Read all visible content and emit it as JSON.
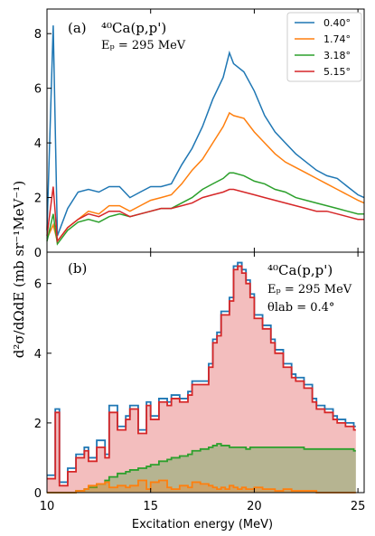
{
  "figure": {
    "panel_a": {
      "label": "(a)",
      "reaction": "⁴⁰Ca(p,p')",
      "energy": "Eₚ = 295 MeV",
      "legend": [
        "0.40°",
        "1.74°",
        "3.18°",
        "5.15°"
      ],
      "yticks": [
        "0",
        "2",
        "4",
        "6",
        "8"
      ]
    },
    "panel_b": {
      "label": "(b)",
      "reaction": "⁴⁰Ca(p,p')",
      "energy": "Eₚ = 295 MeV",
      "angle": "θlab = 0.4°",
      "yticks": [
        "0",
        "2",
        "4",
        "6"
      ]
    },
    "xticks": [
      "10",
      "15",
      "20",
      "25"
    ],
    "xlabel": "Excitation energy (MeV)",
    "ylabel": "d²σ/dΩdE (mb sr⁻¹MeV⁻¹)"
  },
  "colors": {
    "blue": "#1f77b4",
    "orange": "#ff7f0e",
    "green": "#2ca02c",
    "red": "#d62728"
  },
  "chart_data": [
    {
      "type": "line",
      "panel": "a",
      "xlim": [
        10,
        25.3
      ],
      "ylim": [
        0,
        8.9
      ],
      "x": [
        10,
        10.3,
        10.5,
        11,
        11.5,
        12,
        12.5,
        13,
        13.5,
        14,
        14.5,
        15,
        15.5,
        16,
        16.5,
        17,
        17.5,
        18,
        18.5,
        18.8,
        19,
        19.5,
        20,
        20.5,
        21,
        21.5,
        22,
        22.5,
        23,
        23.5,
        24,
        24.5,
        25,
        25.3
      ],
      "series": [
        {
          "name": "0.40°",
          "color": "blue",
          "values": [
            0.8,
            8.3,
            0.6,
            1.6,
            2.2,
            2.3,
            2.2,
            2.4,
            2.4,
            2.0,
            2.2,
            2.4,
            2.4,
            2.5,
            3.2,
            3.8,
            4.6,
            5.6,
            6.4,
            7.3,
            6.9,
            6.6,
            5.9,
            5.0,
            4.4,
            4.0,
            3.6,
            3.3,
            3.0,
            2.8,
            2.7,
            2.4,
            2.1,
            2.0
          ]
        },
        {
          "name": "1.74°",
          "color": "orange",
          "values": [
            0.5,
            1.0,
            0.4,
            0.9,
            1.2,
            1.5,
            1.4,
            1.7,
            1.7,
            1.5,
            1.7,
            1.9,
            2.0,
            2.1,
            2.5,
            3.0,
            3.4,
            4.0,
            4.6,
            5.1,
            5.0,
            4.9,
            4.4,
            4.0,
            3.6,
            3.3,
            3.1,
            2.9,
            2.7,
            2.5,
            2.3,
            2.1,
            1.9,
            1.8
          ]
        },
        {
          "name": "3.18°",
          "color": "green",
          "values": [
            0.4,
            1.4,
            0.3,
            0.8,
            1.1,
            1.2,
            1.1,
            1.3,
            1.4,
            1.3,
            1.4,
            1.5,
            1.6,
            1.6,
            1.8,
            2.0,
            2.3,
            2.5,
            2.7,
            2.9,
            2.9,
            2.8,
            2.6,
            2.5,
            2.3,
            2.2,
            2.0,
            1.9,
            1.8,
            1.7,
            1.6,
            1.5,
            1.4,
            1.4
          ]
        },
        {
          "name": "5.15°",
          "color": "red",
          "values": [
            0.6,
            2.4,
            0.4,
            0.9,
            1.2,
            1.4,
            1.3,
            1.5,
            1.5,
            1.3,
            1.4,
            1.5,
            1.6,
            1.6,
            1.7,
            1.8,
            2.0,
            2.1,
            2.2,
            2.3,
            2.3,
            2.2,
            2.1,
            2.0,
            1.9,
            1.8,
            1.7,
            1.6,
            1.5,
            1.5,
            1.4,
            1.3,
            1.2,
            1.2
          ]
        }
      ]
    },
    {
      "type": "area",
      "panel": "b",
      "xlim": [
        10,
        25.3
      ],
      "ylim": [
        0,
        6.9
      ],
      "x": [
        10,
        10.4,
        10.6,
        11,
        11.4,
        11.8,
        12,
        12.4,
        12.8,
        13,
        13.4,
        13.8,
        14,
        14.4,
        14.8,
        15,
        15.4,
        15.8,
        16,
        16.4,
        16.8,
        17,
        17.4,
        17.8,
        18,
        18.2,
        18.4,
        18.6,
        18.8,
        19,
        19.2,
        19.4,
        19.6,
        19.8,
        20,
        20.4,
        20.8,
        21,
        21.4,
        21.8,
        22,
        22.4,
        22.8,
        23,
        23.4,
        23.8,
        24,
        24.4,
        24.8,
        24.9
      ],
      "series": [
        {
          "name": "",
          "color": "blue",
          "values": [
            0.5,
            2.4,
            0.3,
            0.7,
            1.1,
            1.3,
            1.0,
            1.5,
            1.1,
            2.5,
            1.9,
            2.2,
            2.5,
            1.8,
            2.6,
            2.2,
            2.7,
            2.6,
            2.8,
            2.7,
            2.9,
            3.2,
            3.2,
            3.7,
            4.4,
            4.6,
            5.2,
            5.2,
            5.6,
            6.5,
            6.6,
            6.4,
            6.1,
            5.7,
            5.1,
            4.8,
            4.4,
            4.1,
            3.7,
            3.4,
            3.3,
            3.1,
            2.7,
            2.5,
            2.4,
            2.2,
            2.1,
            2.0,
            1.9,
            1.9
          ]
        },
        {
          "name": "",
          "color": "red",
          "values": [
            0.4,
            2.3,
            0.2,
            0.6,
            1.0,
            1.2,
            0.9,
            1.3,
            1.0,
            2.3,
            1.8,
            2.1,
            2.4,
            1.7,
            2.5,
            2.1,
            2.6,
            2.5,
            2.7,
            2.6,
            2.8,
            3.1,
            3.1,
            3.6,
            4.3,
            4.5,
            5.1,
            5.1,
            5.5,
            6.4,
            6.5,
            6.3,
            6.0,
            5.6,
            5.0,
            4.7,
            4.3,
            4.0,
            3.6,
            3.3,
            3.2,
            3.0,
            2.6,
            2.4,
            2.3,
            2.1,
            2.0,
            1.9,
            1.8,
            1.8
          ]
        },
        {
          "name": "",
          "color": "green",
          "values": [
            0,
            0,
            0,
            0,
            0.05,
            0.1,
            0.15,
            0.25,
            0.35,
            0.45,
            0.55,
            0.6,
            0.65,
            0.7,
            0.75,
            0.8,
            0.9,
            0.95,
            1.0,
            1.05,
            1.1,
            1.2,
            1.25,
            1.3,
            1.35,
            1.4,
            1.35,
            1.35,
            1.3,
            1.3,
            1.3,
            1.3,
            1.25,
            1.3,
            1.3,
            1.3,
            1.3,
            1.3,
            1.3,
            1.3,
            1.3,
            1.25,
            1.25,
            1.25,
            1.25,
            1.25,
            1.25,
            1.25,
            1.2,
            1.2
          ]
        },
        {
          "name": "",
          "color": "orange",
          "values": [
            0,
            0,
            0,
            0,
            0.05,
            0.1,
            0.2,
            0.25,
            0.3,
            0.15,
            0.2,
            0.15,
            0.2,
            0.35,
            0.1,
            0.3,
            0.35,
            0.15,
            0.1,
            0.2,
            0.15,
            0.3,
            0.25,
            0.2,
            0.15,
            0.1,
            0.15,
            0.1,
            0.2,
            0.15,
            0.1,
            0.15,
            0.1,
            0.1,
            0.15,
            0.1,
            0.1,
            0.05,
            0.1,
            0.05,
            0.05,
            0.05,
            0.05,
            0,
            0,
            0,
            0,
            0,
            0,
            0
          ]
        }
      ]
    }
  ]
}
